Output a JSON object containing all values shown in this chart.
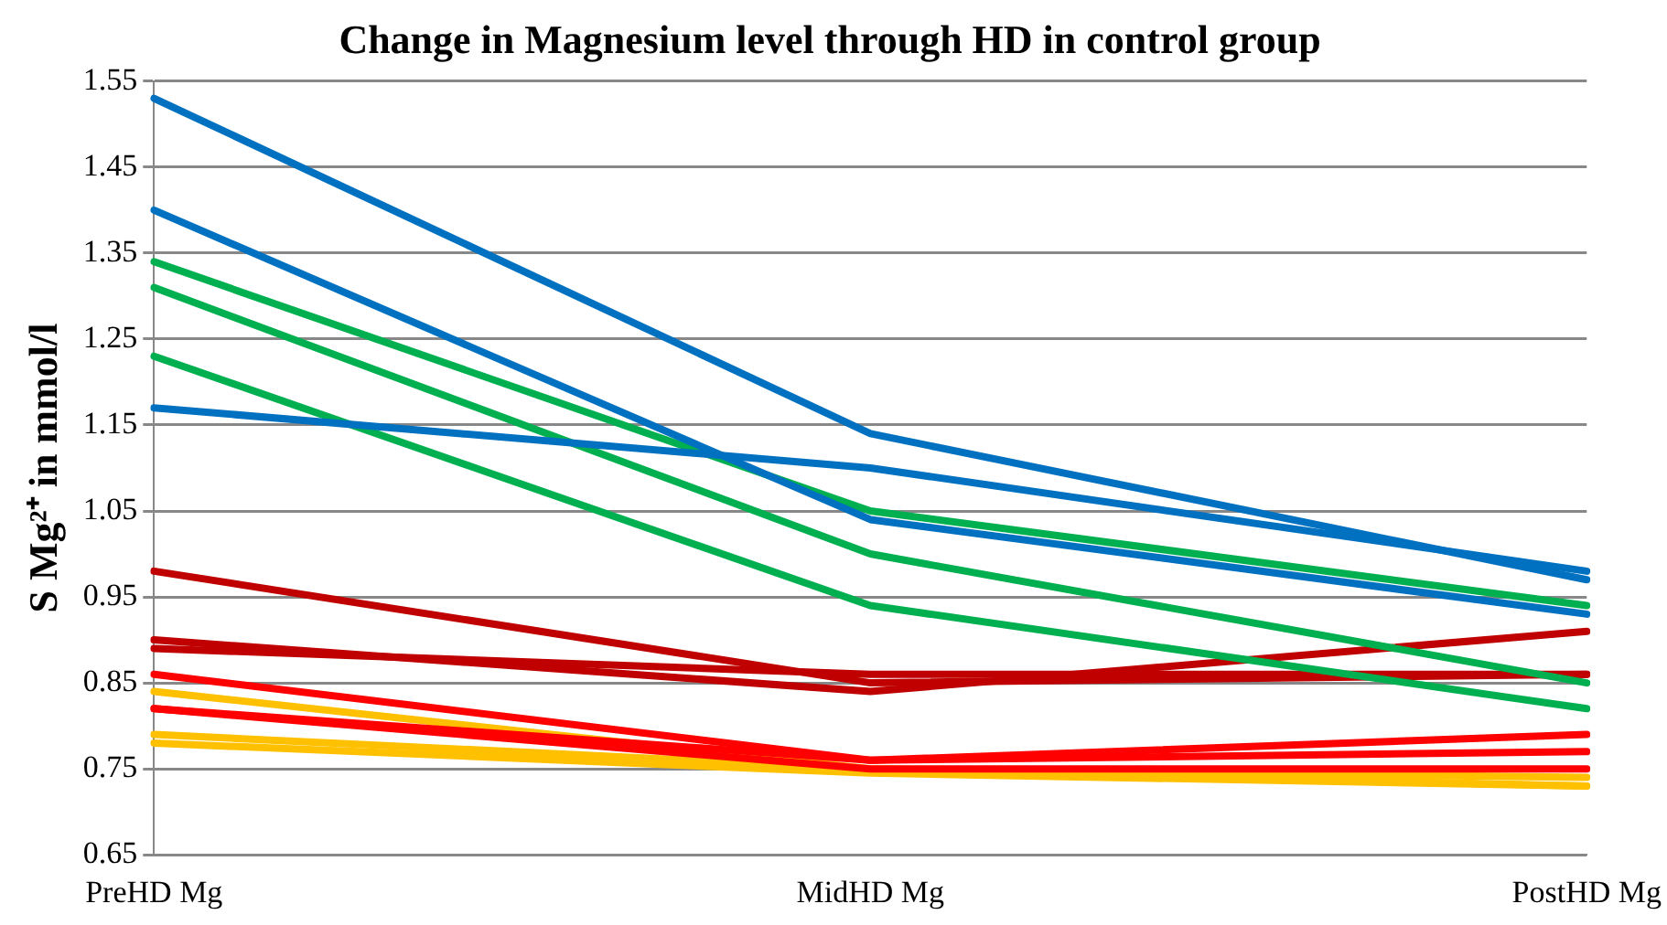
{
  "chart_data": {
    "type": "line",
    "title": "Change in Magnesium level through HD in control group",
    "ylabel": "S Mg²⁺ in mmol/l",
    "categories": [
      "PreHD Mg",
      "MidHD Mg",
      "PostHD Mg"
    ],
    "series": [
      {
        "color": "#0070c0",
        "values": [
          1.53,
          1.14,
          0.97
        ]
      },
      {
        "color": "#0070c0",
        "values": [
          1.4,
          1.04,
          0.93
        ]
      },
      {
        "color": "#0070c0",
        "values": [
          1.17,
          1.1,
          0.98
        ]
      },
      {
        "color": "#00b050",
        "values": [
          1.34,
          1.05,
          0.94
        ]
      },
      {
        "color": "#00b050",
        "values": [
          1.31,
          1.0,
          0.85
        ]
      },
      {
        "color": "#00b050",
        "values": [
          1.23,
          0.94,
          0.82
        ]
      },
      {
        "color": "#c00000",
        "values": [
          0.98,
          0.85,
          0.86
        ]
      },
      {
        "color": "#c00000",
        "values": [
          0.9,
          0.84,
          0.91
        ]
      },
      {
        "color": "#c00000",
        "values": [
          0.89,
          0.86,
          0.86
        ]
      },
      {
        "color": "#ff0000",
        "values": [
          0.86,
          0.76,
          0.79
        ]
      },
      {
        "color": "#ff0000",
        "values": [
          0.82,
          0.76,
          0.77
        ]
      },
      {
        "color": "#ff0000",
        "values": [
          0.82,
          0.75,
          0.75
        ]
      },
      {
        "color": "#ffc000",
        "values": [
          0.84,
          0.75,
          0.74
        ]
      },
      {
        "color": "#ffc000",
        "values": [
          0.79,
          0.75,
          0.73
        ]
      },
      {
        "color": "#ffc000",
        "values": [
          0.78,
          0.745,
          0.73
        ]
      }
    ],
    "ylim": [
      0.65,
      1.55
    ],
    "yticks": [
      0.65,
      0.75,
      0.85,
      0.95,
      1.05,
      1.15,
      1.25,
      1.35,
      1.45,
      1.55
    ],
    "grid": "y",
    "legend": false,
    "marker": "none",
    "line_style": "solid"
  }
}
